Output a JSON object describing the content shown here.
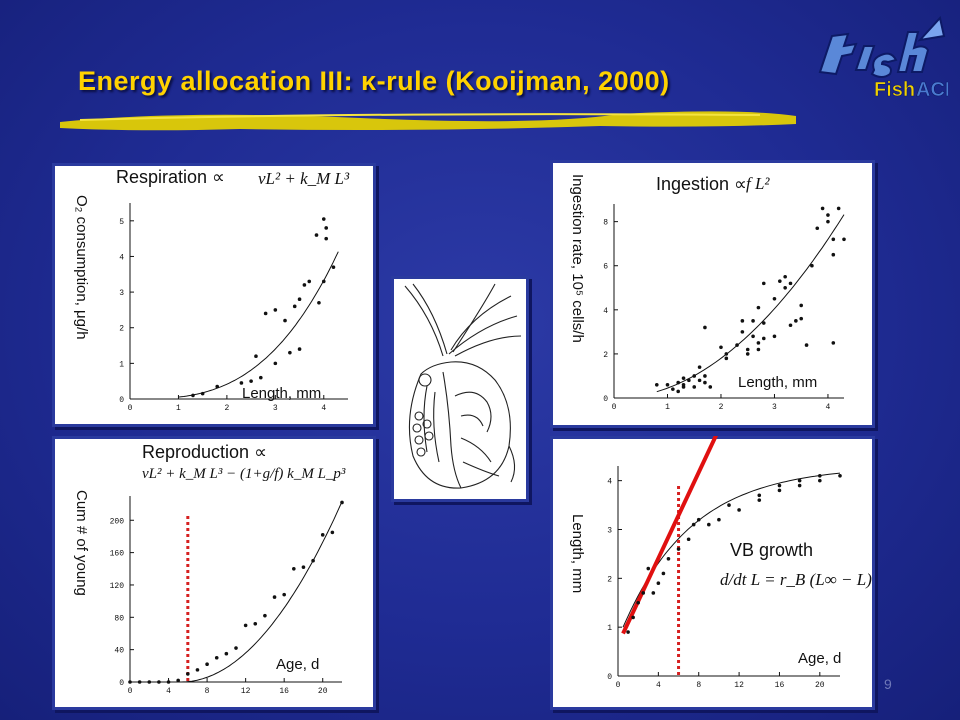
{
  "slide": {
    "title": "Energy allocation III: κ-rule (Kooijman, 2000)",
    "page_number": "9",
    "logo_text": "FishACE",
    "title_color": "#ffd200",
    "brush_color": "#e8d400",
    "background_color": "#1f2b93"
  },
  "panels": {
    "respiration": {
      "title": "Respiration ∝",
      "formula": "νL² + k_M L³",
      "xlabel": "Length, mm",
      "ylabel": "O₂ consumption, μg/h"
    },
    "reproduction": {
      "title": "Reproduction ∝",
      "formula": "νL² + k_M L³ − (1+g/f) k_M L_p³",
      "xlabel": "Age, d",
      "ylabel": "Cum # of young"
    },
    "ingestion": {
      "title": "Ingestion ∝",
      "formula": "f L²",
      "xlabel": "Length, mm",
      "ylabel": "Ingestion rate, 10⁵ cells/h"
    },
    "growth": {
      "title": "VB growth",
      "formula": "d/dt L = r_B (L∞ − L)",
      "xlabel": "Age, d",
      "ylabel": "Length, mm"
    }
  },
  "chart_data": [
    {
      "id": "respiration",
      "type": "scatter",
      "xlabel": "Length, mm",
      "ylabel": "O₂ consumption, μg/h",
      "xlim": [
        0,
        4.5
      ],
      "ylim": [
        0,
        5.5
      ],
      "xticks": [
        0,
        1,
        2,
        3,
        4
      ],
      "yticks": [
        0,
        1,
        2,
        3,
        4,
        5
      ],
      "points": [
        [
          1.3,
          0.1
        ],
        [
          1.5,
          0.15
        ],
        [
          1.8,
          0.35
        ],
        [
          2.3,
          0.45
        ],
        [
          2.5,
          0.5
        ],
        [
          2.7,
          0.6
        ],
        [
          3.0,
          1.0
        ],
        [
          3.3,
          1.3
        ],
        [
          2.6,
          1.2
        ],
        [
          3.5,
          1.4
        ],
        [
          2.8,
          2.4
        ],
        [
          3.0,
          2.5
        ],
        [
          3.2,
          2.2
        ],
        [
          3.4,
          2.6
        ],
        [
          3.5,
          2.8
        ],
        [
          3.6,
          3.2
        ],
        [
          3.7,
          3.3
        ],
        [
          4.0,
          3.3
        ],
        [
          4.2,
          3.7
        ],
        [
          3.9,
          2.7
        ],
        [
          3.85,
          4.6
        ],
        [
          4.0,
          5.05
        ],
        [
          4.05,
          4.8
        ],
        [
          4.05,
          4.5
        ]
      ],
      "curve": {
        "type": "power",
        "a": 0.052,
        "b": 3,
        "x_range": [
          1.0,
          4.3
        ]
      }
    },
    {
      "id": "reproduction",
      "type": "scatter",
      "xlabel": "Age, d",
      "ylabel": "Cum # of young",
      "xlim": [
        0,
        22
      ],
      "ylim": [
        0,
        230
      ],
      "xticks": [
        0,
        4,
        8,
        12,
        16,
        20
      ],
      "yticks": [
        0,
        40,
        80,
        120,
        160,
        200
      ],
      "points": [
        [
          0,
          0
        ],
        [
          1,
          0
        ],
        [
          2,
          0
        ],
        [
          3,
          0
        ],
        [
          4,
          0
        ],
        [
          5,
          2
        ],
        [
          6,
          10
        ],
        [
          7,
          15
        ],
        [
          8,
          22
        ],
        [
          9,
          30
        ],
        [
          10,
          35
        ],
        [
          11,
          42
        ],
        [
          12,
          70
        ],
        [
          13,
          72
        ],
        [
          14,
          82
        ],
        [
          15,
          105
        ],
        [
          16,
          108
        ],
        [
          17,
          140
        ],
        [
          18,
          142
        ],
        [
          19,
          150
        ],
        [
          20,
          182
        ],
        [
          21,
          185
        ],
        [
          22,
          222
        ]
      ],
      "vline_x": 6,
      "curve": {
        "type": "quadratic",
        "k": 0.8,
        "x0": 5.3,
        "x_range": [
          5.3,
          22
        ]
      }
    },
    {
      "id": "ingestion",
      "type": "scatter",
      "xlabel": "Length, mm",
      "ylabel": "Ingestion rate, 10⁵ cells/h",
      "xlim": [
        0,
        4.3
      ],
      "ylim": [
        0,
        8.8
      ],
      "xticks": [
        0,
        1,
        2,
        3,
        4
      ],
      "yticks": [
        0,
        2,
        4,
        6,
        8
      ],
      "points": [
        [
          0.8,
          0.6
        ],
        [
          1.0,
          0.6
        ],
        [
          1.1,
          0.4
        ],
        [
          1.2,
          0.7
        ],
        [
          1.2,
          0.3
        ],
        [
          1.3,
          0.6
        ],
        [
          1.3,
          0.9
        ],
        [
          1.3,
          0.5
        ],
        [
          1.4,
          0.8
        ],
        [
          1.5,
          1.0
        ],
        [
          1.5,
          0.5
        ],
        [
          1.6,
          0.8
        ],
        [
          1.6,
          1.4
        ],
        [
          1.7,
          1.0
        ],
        [
          1.7,
          0.7
        ],
        [
          1.7,
          3.2
        ],
        [
          1.8,
          0.5
        ],
        [
          2.0,
          2.3
        ],
        [
          2.1,
          1.8
        ],
        [
          2.1,
          2.0
        ],
        [
          2.3,
          2.4
        ],
        [
          2.4,
          3.5
        ],
        [
          2.4,
          3.0
        ],
        [
          2.5,
          2.0
        ],
        [
          2.5,
          2.2
        ],
        [
          2.6,
          2.8
        ],
        [
          2.6,
          3.5
        ],
        [
          2.7,
          2.5
        ],
        [
          2.7,
          4.1
        ],
        [
          2.7,
          2.2
        ],
        [
          2.8,
          2.7
        ],
        [
          2.8,
          3.4
        ],
        [
          2.8,
          5.2
        ],
        [
          3.0,
          2.8
        ],
        [
          3.0,
          4.5
        ],
        [
          3.1,
          5.3
        ],
        [
          3.2,
          5.5
        ],
        [
          3.2,
          5.0
        ],
        [
          3.3,
          3.3
        ],
        [
          3.3,
          5.2
        ],
        [
          3.4,
          3.5
        ],
        [
          3.5,
          4.2
        ],
        [
          3.5,
          3.6
        ],
        [
          3.6,
          2.4
        ],
        [
          3.7,
          6.0
        ],
        [
          3.8,
          7.7
        ],
        [
          3.9,
          8.6
        ],
        [
          4.0,
          8.3
        ],
        [
          4.0,
          8.0
        ],
        [
          4.1,
          7.2
        ],
        [
          4.1,
          2.5
        ],
        [
          4.2,
          8.6
        ],
        [
          4.3,
          7.2
        ],
        [
          4.1,
          6.5
        ]
      ],
      "curve": {
        "type": "power",
        "a": 0.45,
        "b": 2,
        "x_range": [
          0.8,
          4.3
        ]
      }
    },
    {
      "id": "growth",
      "type": "scatter",
      "xlabel": "Age, d",
      "ylabel": "Length, mm",
      "xlim": [
        0,
        22
      ],
      "ylim": [
        0,
        4.3
      ],
      "xticks": [
        0,
        4,
        8,
        12,
        16,
        20
      ],
      "yticks": [
        0,
        1,
        2,
        3,
        4
      ],
      "points": [
        [
          1,
          0.9
        ],
        [
          1.5,
          1.2
        ],
        [
          2,
          1.5
        ],
        [
          2.5,
          1.7
        ],
        [
          3,
          2.2
        ],
        [
          3.5,
          1.7
        ],
        [
          4,
          1.9
        ],
        [
          4.5,
          2.1
        ],
        [
          5,
          2.4
        ],
        [
          6,
          2.6
        ],
        [
          7,
          2.8
        ],
        [
          7.5,
          3.1
        ],
        [
          8,
          3.2
        ],
        [
          9,
          3.1
        ],
        [
          10,
          3.2
        ],
        [
          11,
          3.5
        ],
        [
          12,
          3.4
        ],
        [
          14,
          3.7
        ],
        [
          14,
          3.6
        ],
        [
          16,
          3.8
        ],
        [
          16,
          3.9
        ],
        [
          18,
          4.0
        ],
        [
          18,
          3.9
        ],
        [
          20,
          4.1
        ],
        [
          20,
          4.0
        ],
        [
          22,
          4.1
        ]
      ],
      "vline_x": 6,
      "curve": {
        "type": "von_bertalanffy",
        "Linf": 4.3,
        "L0": 0.75,
        "rB": 0.145,
        "x_range": [
          0.5,
          22
        ]
      },
      "tangent": {
        "x_range": [
          0.5,
          10.5
        ],
        "slope": 0.44,
        "intercept": 0.65
      }
    }
  ]
}
